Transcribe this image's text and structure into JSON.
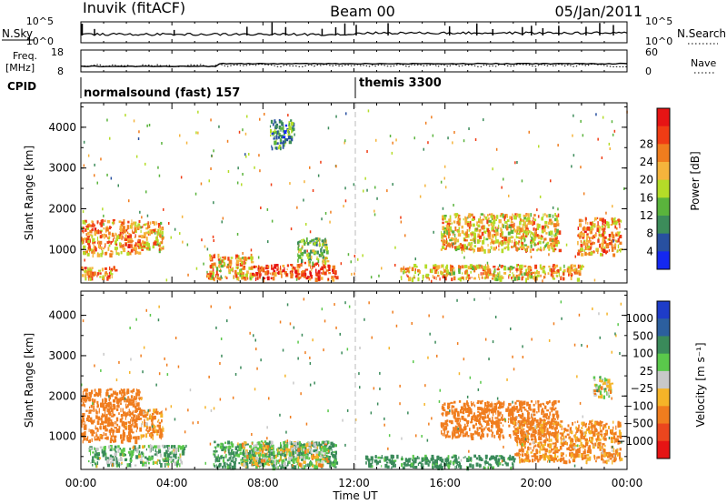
{
  "header": {
    "station": "Inuvik (fitACF)",
    "beam": "Beam 00",
    "date": "05/Jan/2011"
  },
  "aux_panels": {
    "nsky": {
      "label": "N.Sky",
      "right_label": "N.Search",
      "yticks_left": [
        "10^5",
        "10^0"
      ],
      "yticks_right": [
        "10^5",
        "10^0"
      ]
    },
    "freq": {
      "label_line1": "Freq.",
      "label_line2": "[MHz]",
      "yticks_left": [
        "18",
        "8"
      ],
      "right_label": "Nave",
      "yticks_right": [
        "60",
        "0"
      ]
    },
    "cpid": {
      "label": "CPID",
      "segments": [
        {
          "name": "normalsound (fast) 157",
          "start_hour": 0,
          "end_hour": 12
        },
        {
          "name": "themis 3300",
          "start_hour": 12,
          "end_hour": 24
        }
      ]
    }
  },
  "xaxis": {
    "label": "Time UT",
    "tick_labels": [
      "00:00",
      "04:00",
      "08:00",
      "12:00",
      "16:00",
      "20:00",
      "00:00"
    ],
    "range_hours": [
      0,
      24
    ]
  },
  "panels": {
    "power": {
      "ylabel": "Slant Range [km]",
      "yticks": [
        "1000",
        "2000",
        "3000",
        "4000"
      ],
      "colorbar_label": "Power [dB]",
      "colorbar_ticks": [
        "4",
        "8",
        "12",
        "16",
        "20",
        "24",
        "28"
      ],
      "colors": [
        "#1428f0",
        "#2850a0",
        "#3c8c5a",
        "#5ab43c",
        "#b4dc28",
        "#f5b43c",
        "#f07d1e",
        "#f03c14",
        "#e61414"
      ]
    },
    "velocity": {
      "ylabel": "Slant Range [km]",
      "yticks": [
        "1000",
        "2000",
        "3000",
        "4000"
      ],
      "colorbar_label": "Velocity [m s⁻¹]",
      "colorbar_ticks": [
        "1000",
        "500",
        "100",
        "25",
        "−25",
        "−100",
        "−500",
        "−1000"
      ],
      "colors": [
        "#1e3cc8",
        "#2c5f9e",
        "#3a8a5a",
        "#5ac84b",
        "#c8c8c8",
        "#f5b428",
        "#f07d1e",
        "#eb461e",
        "#e61414"
      ]
    }
  },
  "chart_data": [
    {
      "type": "heatmap",
      "title": "Power [dB]",
      "xlabel": "Time UT",
      "ylabel": "Slant Range [km]",
      "xlim": [
        0,
        24
      ],
      "ylim": [
        180,
        4600
      ],
      "colorbar_range": [
        0,
        32
      ],
      "regions": [
        {
          "t0": 0.0,
          "t1": 2.6,
          "r0": 900,
          "r1": 1750,
          "value": 22
        },
        {
          "t0": 2.6,
          "t1": 3.6,
          "r0": 1000,
          "r1": 1700,
          "value": 20
        },
        {
          "t0": 0.0,
          "t1": 1.5,
          "r0": 300,
          "r1": 600,
          "value": 22
        },
        {
          "t0": 5.5,
          "t1": 7.5,
          "r0": 300,
          "r1": 900,
          "value": 20
        },
        {
          "t0": 7.5,
          "t1": 9.3,
          "r0": 300,
          "r1": 650,
          "value": 26
        },
        {
          "t0": 9.3,
          "t1": 11.2,
          "r0": 300,
          "r1": 700,
          "value": 26
        },
        {
          "t0": 9.5,
          "t1": 10.8,
          "r0": 700,
          "r1": 1300,
          "value": 14
        },
        {
          "t0": 14.0,
          "t1": 22.0,
          "r0": 300,
          "r1": 650,
          "value": 20
        },
        {
          "t0": 15.8,
          "t1": 21.0,
          "r0": 1000,
          "r1": 1900,
          "value": 20
        },
        {
          "t0": 21.8,
          "t1": 23.7,
          "r0": 900,
          "r1": 1800,
          "value": 22
        },
        {
          "t0": 8.3,
          "t1": 9.3,
          "r0": 3500,
          "r1": 4200,
          "value": 10
        }
      ]
    },
    {
      "type": "heatmap",
      "title": "Velocity [m s⁻¹]",
      "xlabel": "Time UT",
      "ylabel": "Slant Range [km]",
      "xlim": [
        0,
        24
      ],
      "ylim": [
        180,
        4600
      ],
      "colorbar_range": [
        -1000,
        1000
      ],
      "regions": [
        {
          "t0": 0.0,
          "t1": 2.6,
          "r0": 900,
          "r1": 2200,
          "value": -300
        },
        {
          "t0": 2.6,
          "t1": 3.6,
          "r0": 1000,
          "r1": 1700,
          "value": -150
        },
        {
          "t0": 0.3,
          "t1": 4.5,
          "r0": 300,
          "r1": 800,
          "value": 80
        },
        {
          "t0": 5.8,
          "t1": 11.2,
          "r0": 250,
          "r1": 900,
          "value": 150
        },
        {
          "t0": 7.0,
          "t1": 10.8,
          "r0": 300,
          "r1": 900,
          "value": 0
        },
        {
          "t0": 12.5,
          "t1": 19.0,
          "r0": 250,
          "r1": 550,
          "value": 200
        },
        {
          "t0": 15.8,
          "t1": 21.0,
          "r0": 1000,
          "r1": 1900,
          "value": -300
        },
        {
          "t0": 19.0,
          "t1": 23.7,
          "r0": 400,
          "r1": 1400,
          "value": -150
        },
        {
          "t0": 22.5,
          "t1": 23.3,
          "r0": 2000,
          "r1": 2500,
          "value": 0
        }
      ]
    }
  ]
}
